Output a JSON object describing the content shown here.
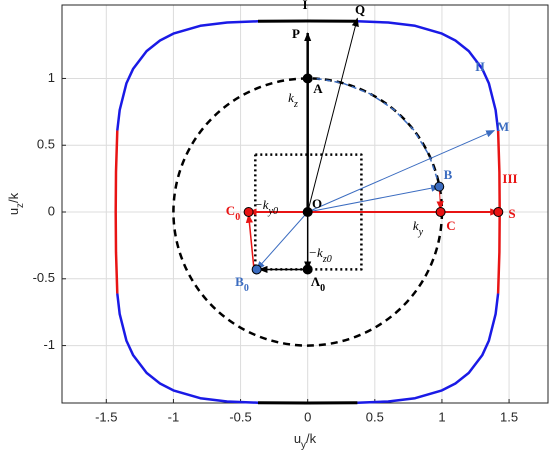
{
  "chart_data": {
    "type": "line",
    "xlabel": [
      "u",
      "y",
      "/k"
    ],
    "ylabel": [
      "u",
      "z",
      "/k"
    ],
    "xlim": [
      -1.83,
      1.79
    ],
    "ylim": [
      -1.43,
      1.55
    ],
    "xticks": [
      -1.5,
      -1,
      -0.5,
      0,
      0.5,
      1,
      1.5
    ],
    "yticks": [
      -1,
      -0.5,
      0,
      0.5,
      1
    ],
    "grid": true,
    "circle": {
      "cx": 0,
      "cy": 0,
      "r": 1,
      "color": "#000000"
    },
    "series": [
      {
        "color": "#1a1ae6",
        "width": 2.5,
        "dash": "none",
        "x": [
          0.37,
          0.6,
          0.8,
          1.0,
          1.1,
          1.2,
          1.3,
          1.35,
          1.4,
          1.418,
          null,
          1.418,
          1.4,
          1.35,
          1.3,
          1.2,
          1.1,
          1.0,
          0.8,
          0.6,
          0.37,
          null,
          -0.37,
          -0.6,
          -0.8,
          -1.0,
          -1.1,
          -1.2,
          -1.3,
          -1.35,
          -1.4,
          -1.418,
          null,
          -1.418,
          -1.4,
          -1.35,
          -1.3,
          -1.2,
          -1.1,
          -1.0,
          -0.8,
          -0.6,
          -0.37
        ],
        "y": [
          1.428,
          1.419,
          1.394,
          1.336,
          1.284,
          1.205,
          1.073,
          0.963,
          0.764,
          0.61,
          null,
          -0.61,
          -0.764,
          -0.963,
          -1.073,
          -1.205,
          -1.284,
          -1.336,
          -1.394,
          -1.419,
          -1.428,
          null,
          -1.428,
          -1.419,
          -1.394,
          -1.336,
          -1.284,
          -1.205,
          -1.073,
          -0.963,
          -0.764,
          -0.61,
          null,
          0.61,
          0.764,
          0.963,
          1.073,
          1.205,
          1.284,
          1.336,
          1.394,
          1.419,
          1.428
        ]
      },
      {
        "color": "#e81414",
        "width": 2.5,
        "dash": "none",
        "x": [
          1.418,
          1.428,
          1.43,
          1.428,
          1.418,
          null,
          -1.418,
          -1.428,
          -1.43,
          -1.428,
          -1.418
        ],
        "y": [
          0.61,
          0.3,
          0,
          -0.3,
          -0.61,
          null,
          0.61,
          0.3,
          0,
          -0.3,
          -0.61
        ]
      },
      {
        "color": "#000000",
        "width": 3,
        "dash": "none",
        "x": [
          -0.37,
          0,
          0.37,
          null,
          -0.37,
          0,
          0.37
        ],
        "y": [
          1.428,
          1.43,
          1.428,
          null,
          -1.428,
          -1.43,
          -1.428
        ]
      },
      {
        "color": "#000000",
        "width": 2.5,
        "dash": "2,3",
        "x": [
          -0.39,
          0.4,
          0.4,
          -0.39,
          -0.39
        ],
        "y": [
          0.43,
          0.43,
          -0.43,
          -0.43,
          0.43
        ]
      },
      {
        "color": "#3b6cc0",
        "width": 1.5,
        "dash": "5,4",
        "x": [
          0,
          0.087,
          0.259,
          0.469,
          0.643,
          0.788,
          0.906,
          0.978
        ],
        "y": [
          1,
          0.996,
          0.966,
          0.883,
          0.766,
          0.616,
          0.423,
          0.208
        ]
      }
    ],
    "arrows": [
      {
        "color": "#000000",
        "width": 2.5,
        "x": [
          0,
          0
        ],
        "y": [
          0,
          1.34
        ]
      },
      {
        "color": "#000000",
        "width": 1,
        "x": [
          0,
          0.37
        ],
        "y": [
          0,
          1.45
        ]
      },
      {
        "color": "#3b6cc0",
        "width": 1,
        "x": [
          0,
          1.39
        ],
        "y": [
          0,
          0.61
        ]
      },
      {
        "color": "#3b6cc0",
        "width": 1,
        "x": [
          0,
          0.98
        ],
        "y": [
          0,
          0.19
        ]
      },
      {
        "color": "#e81414",
        "width": 2,
        "x": [
          0,
          1.42
        ],
        "y": [
          0,
          0
        ]
      },
      {
        "color": "#e81414",
        "width": 2,
        "x": [
          0,
          -0.44
        ],
        "y": [
          0,
          0
        ]
      },
      {
        "color": "#e81414",
        "width": 1.5,
        "x": [
          -0.4,
          -0.44
        ],
        "y": [
          -0.43,
          -0.02
        ]
      },
      {
        "color": "#3b6cc0",
        "width": 1,
        "x": [
          0,
          -0.38
        ],
        "y": [
          0,
          -0.43
        ]
      },
      {
        "color": "#000000",
        "width": 1.5,
        "x": [
          0,
          0
        ],
        "y": [
          0,
          -0.43
        ]
      },
      {
        "color": "#000000",
        "width": 1.5,
        "x": [
          0,
          -0.36
        ],
        "y": [
          -0.43,
          -0.43
        ]
      },
      {
        "color": "#e81414",
        "width": 1,
        "x": [
          0.98,
          0.99
        ],
        "y": [
          0.19,
          0.02
        ]
      }
    ],
    "points": [
      {
        "x": 0,
        "y": 0,
        "color": "#000000"
      },
      {
        "x": 0,
        "y": 1,
        "color": "#000000"
      },
      {
        "x": 0.98,
        "y": 0.19,
        "color": "#3b6cc0"
      },
      {
        "x": 0.99,
        "y": 0,
        "color": "#e81414"
      },
      {
        "x": 1.42,
        "y": 0,
        "color": "#e81414"
      },
      {
        "x": -0.44,
        "y": 0,
        "color": "#e81414"
      },
      {
        "x": -0.38,
        "y": -0.43,
        "color": "#3b6cc0"
      },
      {
        "x": 0,
        "y": -0.43,
        "color": "#000000"
      }
    ],
    "annotations": [
      {
        "text": "I",
        "color": "#000000"
      },
      {
        "text": "II",
        "color": "#3b6cc0"
      },
      {
        "text": "III",
        "color": "#e81414"
      },
      {
        "text": "P",
        "color": "#000000"
      },
      {
        "text": "Q",
        "color": "#000000"
      },
      {
        "text": "A",
        "color": "#000000"
      },
      {
        "text": "k",
        "sub": "z",
        "color": "#000000"
      },
      {
        "text": "M",
        "color": "#3b6cc0"
      },
      {
        "text": "B",
        "color": "#3b6cc0"
      },
      {
        "text": "O",
        "color": "#000000"
      },
      {
        "text": "C",
        "color": "#e81414"
      },
      {
        "text": "S",
        "color": "#e81414"
      },
      {
        "text": "k",
        "sub": "y",
        "color": "#000000"
      },
      {
        "text": "C",
        "sub": "0",
        "color": "#e81414"
      },
      {
        "text": "−k",
        "sub": "y0",
        "color": "#000000"
      },
      {
        "text": "−k",
        "sub": "z0",
        "color": "#000000"
      },
      {
        "text": "B",
        "sub": "0",
        "color": "#3b6cc0"
      },
      {
        "text": "Λ",
        "sub": "0",
        "color": "#000000"
      }
    ]
  }
}
